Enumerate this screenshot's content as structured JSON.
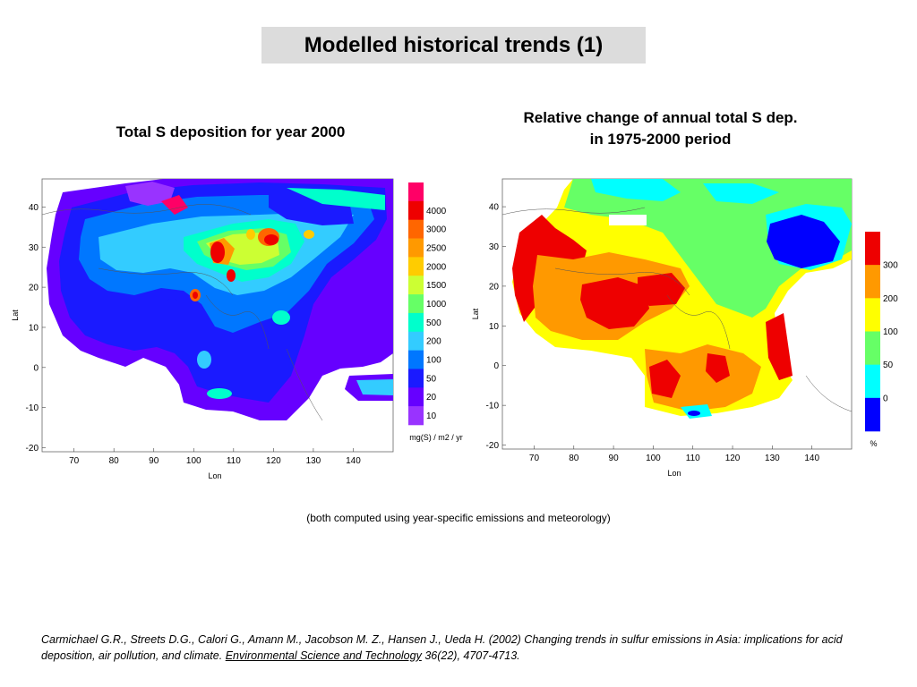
{
  "slide": {
    "title": "Modelled historical trends (1)",
    "note": "(both computed using year-specific emissions and meteorology)",
    "citation": {
      "authors": "Carmichael G.R., Streets D.G., Calori G., Amann M., Jacobson M. Z., Hansen J., Ueda H. (2002) Changing trends in sulfur emissions in Asia: implications for acid deposition, air pollution, and climate.",
      "journal": "Environmental Science and Technology",
      "volume": "36(22), 4707-4713."
    }
  },
  "chart_data": [
    {
      "type": "heatmap",
      "title": "Total S deposition for year 2000",
      "xlabel": "Lon",
      "ylabel": "Lat",
      "x_ticks": [
        70,
        80,
        90,
        100,
        110,
        120,
        130,
        140
      ],
      "y_ticks": [
        40,
        30,
        20,
        10,
        0,
        -10,
        -20
      ],
      "xlim": [
        62,
        150
      ],
      "ylim": [
        -21,
        47
      ],
      "colorbar": {
        "unit": "mg(S) / m2 / yr",
        "levels": [
          "4000",
          "3000",
          "2500",
          "2000",
          "1500",
          "1000",
          "500",
          "200",
          "100",
          "50",
          "20",
          "10"
        ],
        "colors": [
          "#ff0066",
          "#ee0000",
          "#ff6600",
          "#ff9900",
          "#ffcc00",
          "#ccff33",
          "#66ff66",
          "#00ffcc",
          "#33ccff",
          "#0077ff",
          "#1a1aff",
          "#6600ff",
          "#9933ff"
        ]
      }
    },
    {
      "type": "heatmap",
      "title": [
        "Relative change of annual total S dep.",
        "in 1975-2000 period"
      ],
      "xlabel": "Lon",
      "ylabel": "Lat",
      "x_ticks": [
        70,
        80,
        90,
        100,
        110,
        120,
        130,
        140
      ],
      "y_ticks": [
        40,
        30,
        20,
        10,
        0,
        -10,
        -20
      ],
      "xlim": [
        62,
        150
      ],
      "ylim": [
        -21,
        47
      ],
      "colorbar": {
        "unit": "%",
        "levels": [
          "300",
          "200",
          "100",
          "50",
          "0"
        ],
        "colors": [
          "#ee0000",
          "#ff9900",
          "#ffff00",
          "#66ff66",
          "#00ffff",
          "#0000ff"
        ]
      }
    }
  ]
}
